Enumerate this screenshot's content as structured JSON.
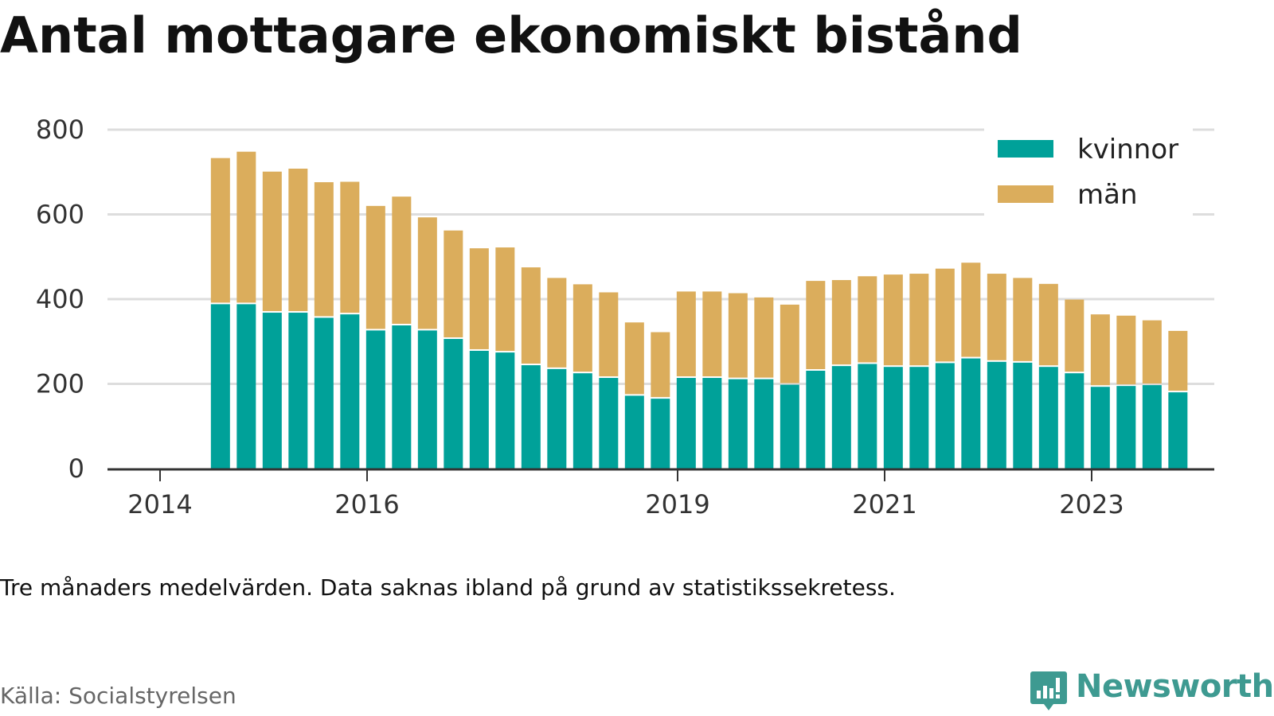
{
  "title": "Antal mottagare ekonomiskt bistånd",
  "note": "Tre månaders medelvärden. Data saknas ibland på grund av statistikssekretess.",
  "source": "Källa: Socialstyrelsen",
  "logo": {
    "text": "Newsworthy",
    "icon": "newsworthy-logo-icon"
  },
  "colors": {
    "kvinnor": "#00a199",
    "man": "#dbad5c",
    "grid": "#dddddd",
    "axis": "#333333",
    "logo": "#3e9a91"
  },
  "chart_data": {
    "type": "bar",
    "stacked": true,
    "title": "Antal mottagare ekonomiskt bistånd",
    "xlabel": "",
    "ylabel": "",
    "ylim": [
      0,
      800
    ],
    "xlim": [
      "2014-01",
      "2024-12"
    ],
    "yticks": [
      0,
      200,
      400,
      600,
      800
    ],
    "xticks": [
      "2014",
      "2016",
      "2019",
      "2021",
      "2023"
    ],
    "grid": true,
    "legend_position": "top-right",
    "x": [
      "2014-07",
      "2014-10",
      "2015-01",
      "2015-04",
      "2015-07",
      "2015-10",
      "2016-01",
      "2016-04",
      "2016-07",
      "2016-10",
      "2017-01",
      "2017-04",
      "2017-07",
      "2017-10",
      "2018-01",
      "2018-04",
      "2018-07",
      "2018-10",
      "2019-01",
      "2019-04",
      "2019-07",
      "2019-10",
      "2020-01",
      "2020-04",
      "2020-07",
      "2020-10",
      "2021-01",
      "2021-04",
      "2021-07",
      "2021-10",
      "2022-01",
      "2022-04",
      "2022-07",
      "2022-10",
      "2023-01",
      "2023-04",
      "2023-07",
      "2023-10"
    ],
    "series": [
      {
        "name": "kvinnor",
        "values": [
          388,
          388,
          368,
          368,
          356,
          364,
          326,
          338,
          326,
          306,
          278,
          274,
          244,
          235,
          225,
          214,
          172,
          165,
          214,
          214,
          211,
          211,
          198,
          231,
          242,
          247,
          240,
          240,
          249,
          260,
          252,
          250,
          240,
          225,
          193,
          195,
          197,
          180
        ]
      },
      {
        "name": "män",
        "values": [
          345,
          360,
          333,
          340,
          320,
          313,
          294,
          304,
          267,
          256,
          242,
          248,
          231,
          215,
          210,
          202,
          173,
          157,
          204,
          204,
          203,
          193,
          189,
          212,
          203,
          207,
          218,
          220,
          223,
          226,
          208,
          200,
          196,
          174,
          171,
          166,
          153,
          145
        ]
      }
    ]
  }
}
